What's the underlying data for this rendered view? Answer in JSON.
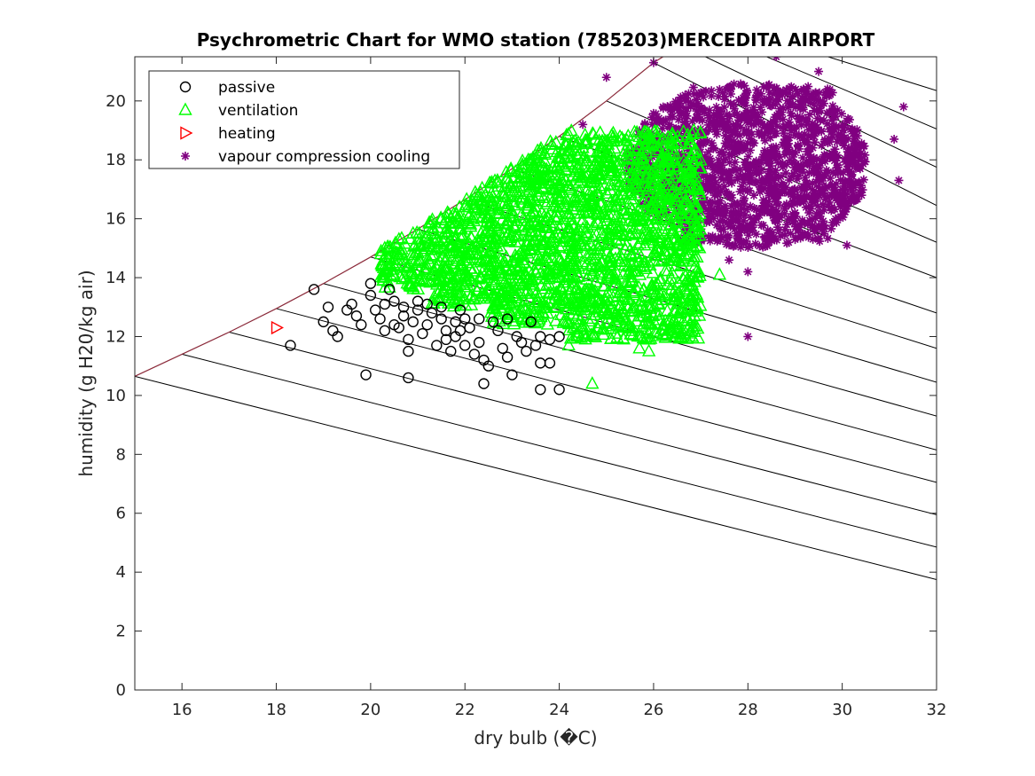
{
  "chart_data": {
    "type": "scatter",
    "title": "Psychrometric Chart for WMO station (785203)MERCEDITA AIRPORT",
    "xlabel": "dry bulb (�C)",
    "ylabel": "humidity (g H20/kg air)",
    "xlim": [
      15,
      32
    ],
    "ylim": [
      0,
      21.5
    ],
    "xticks": [
      16,
      18,
      20,
      22,
      24,
      26,
      28,
      30,
      32
    ],
    "yticks": [
      0,
      2,
      4,
      6,
      8,
      10,
      12,
      14,
      16,
      18,
      20
    ],
    "grid": false,
    "legend_position": "top-left",
    "saturation_curve": [
      [
        15,
        10.65
      ],
      [
        16,
        11.4
      ],
      [
        17,
        12.15
      ],
      [
        18,
        12.95
      ],
      [
        19,
        13.8
      ],
      [
        20,
        14.7
      ],
      [
        21,
        15.65
      ],
      [
        22,
        16.65
      ],
      [
        23,
        17.7
      ],
      [
        24,
        18.8
      ],
      [
        25,
        20.0
      ],
      [
        26,
        21.3
      ],
      [
        26.2,
        21.5
      ]
    ],
    "wet_bulb_lines": [
      {
        "left": [
          15,
          10.65
        ],
        "right": [
          32,
          3.75
        ]
      },
      {
        "left": [
          16,
          11.4
        ],
        "right": [
          32,
          4.85
        ]
      },
      {
        "left": [
          17,
          12.15
        ],
        "right": [
          32,
          5.95
        ]
      },
      {
        "left": [
          18,
          12.95
        ],
        "right": [
          32,
          7.05
        ]
      },
      {
        "left": [
          19,
          13.8
        ],
        "right": [
          32,
          8.15
        ]
      },
      {
        "left": [
          20,
          14.7
        ],
        "right": [
          32,
          9.3
        ]
      },
      {
        "left": [
          21,
          15.65
        ],
        "right": [
          32,
          10.45
        ]
      },
      {
        "left": [
          22,
          16.65
        ],
        "right": [
          32,
          11.6
        ]
      },
      {
        "left": [
          23,
          17.7
        ],
        "right": [
          32,
          12.8
        ]
      },
      {
        "left": [
          24,
          18.8
        ],
        "right": [
          32,
          14.0
        ]
      },
      {
        "left": [
          25,
          20.0
        ],
        "right": [
          32,
          15.2
        ]
      },
      {
        "left": [
          26,
          21.3
        ],
        "right": [
          32,
          16.45
        ]
      },
      {
        "left": [
          27.1,
          21.5
        ],
        "right": [
          32,
          17.75
        ]
      },
      {
        "left": [
          28.4,
          21.5
        ],
        "right": [
          32,
          19.05
        ]
      },
      {
        "left": [
          29.7,
          21.5
        ],
        "right": [
          32,
          20.35
        ]
      }
    ],
    "series": [
      {
        "name": "passive",
        "marker": "circle",
        "color": "#000000",
        "points": [
          [
            18.8,
            13.6
          ],
          [
            18.3,
            11.7
          ],
          [
            19.0,
            12.5
          ],
          [
            19.1,
            13.0
          ],
          [
            19.2,
            12.2
          ],
          [
            19.3,
            12.0
          ],
          [
            19.5,
            12.9
          ],
          [
            19.6,
            13.1
          ],
          [
            19.7,
            12.7
          ],
          [
            19.8,
            12.4
          ],
          [
            19.9,
            10.7
          ],
          [
            20.0,
            13.8
          ],
          [
            20.0,
            13.4
          ],
          [
            20.1,
            12.9
          ],
          [
            20.2,
            12.6
          ],
          [
            20.3,
            13.1
          ],
          [
            20.3,
            12.2
          ],
          [
            20.4,
            13.6
          ],
          [
            20.5,
            13.2
          ],
          [
            20.5,
            12.4
          ],
          [
            20.6,
            12.3
          ],
          [
            20.7,
            13.0
          ],
          [
            20.7,
            12.7
          ],
          [
            20.8,
            11.5
          ],
          [
            20.8,
            11.9
          ],
          [
            20.8,
            10.6
          ],
          [
            20.9,
            12.5
          ],
          [
            21.0,
            13.2
          ],
          [
            21.0,
            12.9
          ],
          [
            21.1,
            12.1
          ],
          [
            21.2,
            13.1
          ],
          [
            21.2,
            12.4
          ],
          [
            21.3,
            12.8
          ],
          [
            21.4,
            11.7
          ],
          [
            21.5,
            13.0
          ],
          [
            21.5,
            12.6
          ],
          [
            21.6,
            12.2
          ],
          [
            21.6,
            11.9
          ],
          [
            21.7,
            11.5
          ],
          [
            21.8,
            12.5
          ],
          [
            21.8,
            12.0
          ],
          [
            21.9,
            12.9
          ],
          [
            22.0,
            11.7
          ],
          [
            22.1,
            12.3
          ],
          [
            22.2,
            11.4
          ],
          [
            22.3,
            12.6
          ],
          [
            22.3,
            11.8
          ],
          [
            22.4,
            11.2
          ],
          [
            22.4,
            10.4
          ],
          [
            22.5,
            11.0
          ],
          [
            22.6,
            12.5
          ],
          [
            22.7,
            12.2
          ],
          [
            22.8,
            11.6
          ],
          [
            22.9,
            11.3
          ],
          [
            22.9,
            12.6
          ],
          [
            23.0,
            10.7
          ],
          [
            23.1,
            12.0
          ],
          [
            23.2,
            11.8
          ],
          [
            23.3,
            11.5
          ],
          [
            23.4,
            12.5
          ],
          [
            23.5,
            11.7
          ],
          [
            23.6,
            12.0
          ],
          [
            23.6,
            11.1
          ],
          [
            23.6,
            10.2
          ],
          [
            23.8,
            11.9
          ],
          [
            23.8,
            11.1
          ],
          [
            24.0,
            10.2
          ],
          [
            24.0,
            12.0
          ],
          [
            22.0,
            12.6
          ],
          [
            21.9,
            12.2
          ]
        ]
      },
      {
        "name": "ventilation",
        "marker": "triangle-up",
        "color": "#00ff00",
        "cluster": {
          "x_min": 20.2,
          "x_max": 27.0,
          "y_min": 11.9,
          "y_max": 19.0
        },
        "outliers": [
          [
            24.7,
            10.4
          ],
          [
            25.7,
            11.6
          ],
          [
            25.9,
            11.5
          ],
          [
            24.2,
            11.7
          ],
          [
            26.3,
            12.2
          ],
          [
            26.8,
            12.2
          ],
          [
            25.2,
            12.1
          ],
          [
            27.4,
            14.1
          ],
          [
            24.3,
            12.3
          ],
          [
            26.5,
            13.1
          ],
          [
            20.3,
            15.0
          ],
          [
            20.6,
            15.3
          ],
          [
            20.9,
            15.5
          ],
          [
            20.5,
            14.1
          ]
        ]
      },
      {
        "name": "heating",
        "marker": "triangle-right",
        "color": "#ff0000",
        "points": [
          [
            18.0,
            12.3
          ]
        ]
      },
      {
        "name": "vapour compression cooling",
        "marker": "asterisk",
        "color": "#800080",
        "cluster": {
          "x_min": 24.2,
          "x_max": 30.5,
          "y_min": 14.5,
          "y_max": 21.5
        },
        "outliers": [
          [
            28.0,
            12.0
          ],
          [
            31.3,
            19.8
          ],
          [
            31.2,
            17.3
          ],
          [
            31.1,
            18.7
          ],
          [
            30.1,
            15.1
          ],
          [
            28.0,
            14.2
          ],
          [
            27.6,
            14.6
          ],
          [
            29.5,
            21.0
          ],
          [
            28.6,
            21.5
          ],
          [
            26.0,
            21.3
          ],
          [
            25.0,
            20.8
          ],
          [
            24.5,
            19.2
          ]
        ]
      }
    ]
  }
}
